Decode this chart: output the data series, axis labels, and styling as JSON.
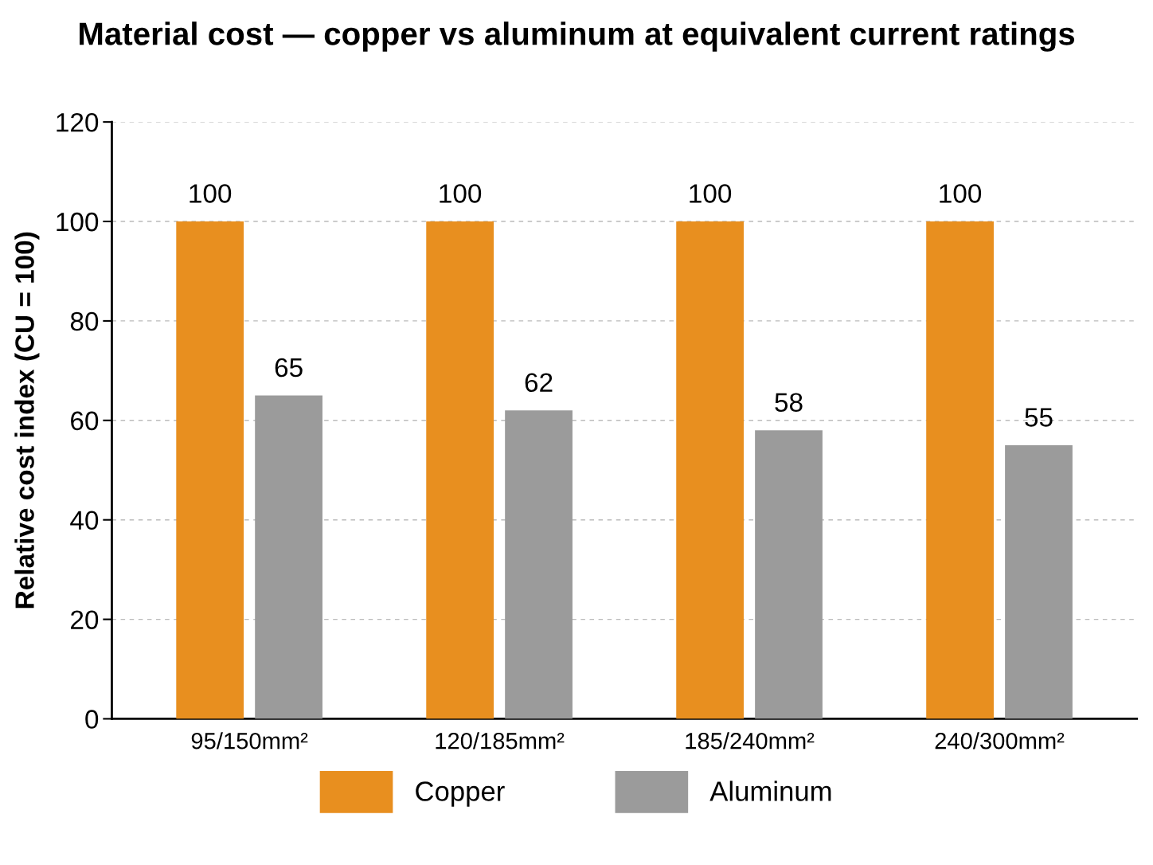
{
  "chart_data": {
    "type": "bar",
    "title": "Material cost — copper vs aluminum at equivalent current ratings",
    "ylabel": "Relative cost index (CU = 100)",
    "categories": [
      "95/150mm²",
      "120/185mm²",
      "185/240mm²",
      "240/300mm²"
    ],
    "series": [
      {
        "name": "Copper",
        "color": "#e88f1f",
        "values": [
          100,
          100,
          100,
          100
        ]
      },
      {
        "name": "Aluminum",
        "color": "#9b9b9b",
        "values": [
          65,
          62,
          58,
          55
        ]
      }
    ],
    "ylim": [
      0,
      120
    ],
    "yticks": [
      0,
      20,
      40,
      60,
      80,
      100,
      120
    ],
    "grid": "y",
    "legend": "bottom",
    "data_labels": true
  }
}
